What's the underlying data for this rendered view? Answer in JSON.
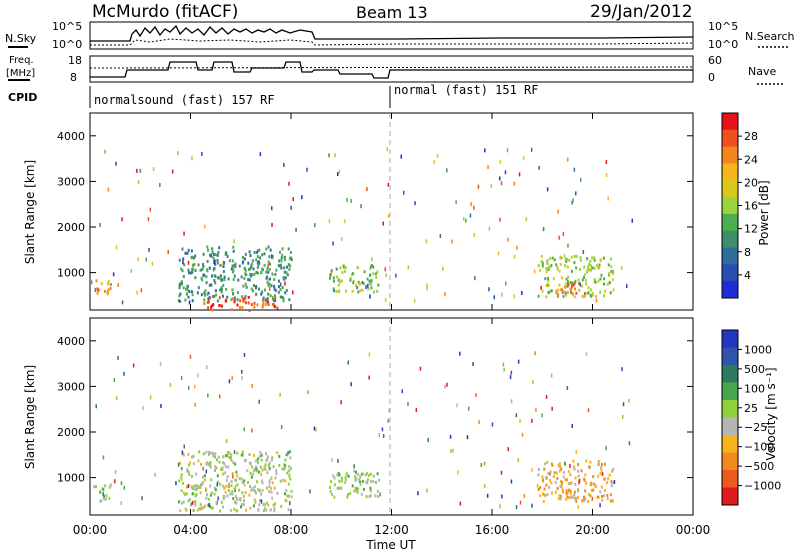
{
  "header": {
    "station": "McMurdo (fitACF)",
    "beam": "Beam 13",
    "date": "29/Jan/2012"
  },
  "top_panels": {
    "nsky_label": "N.Sky",
    "nsky_ticks": [
      "10^5",
      "10^0"
    ],
    "nsearch_label": "N.Search",
    "nsearch_ticks": [
      "10^5",
      "10^0"
    ],
    "freq_label_1": "Freq.",
    "freq_label_2": "[MHz]",
    "freq_ticks": [
      "18",
      "8"
    ],
    "nave_label": "Nave",
    "nave_ticks": [
      "60",
      "0"
    ],
    "cpid_label": "CPID",
    "modes": [
      "normalsound (fast) 157 RF",
      "normal (fast) 151 RF"
    ]
  },
  "colorbars": {
    "power": {
      "label": "Power [dB]",
      "ticks": [
        "28",
        "24",
        "20",
        "16",
        "12",
        "8",
        "4"
      ],
      "colors": [
        "#e8121b",
        "#f04f1f",
        "#f5861f",
        "#f6b51c",
        "#d8c81d",
        "#9bd33c",
        "#4cae4f",
        "#3f8e6a",
        "#2f6e9c",
        "#2a4cb5",
        "#1f2dd6"
      ]
    },
    "velocity": {
      "label": "Velocity [m s⁻¹]",
      "ticks": [
        "1000",
        "500",
        "100",
        "25",
        "−25",
        "−100",
        "−500",
        "−1000"
      ],
      "colors": [
        "#2137c4",
        "#2f53a8",
        "#2e7a5c",
        "#4aa64d",
        "#8fd13a",
        "#b5b5b5",
        "#f7b41a",
        "#f08a1c",
        "#ec5b1c",
        "#e01b1b"
      ]
    }
  },
  "axes": {
    "ylabel": "Slant Range [km]",
    "yticks": [
      "4000",
      "3000",
      "2000",
      "1000"
    ],
    "xlabel": "Time UT",
    "xticks": [
      "00:00",
      "04:00",
      "08:00",
      "12:00",
      "16:00",
      "20:00",
      "00:00"
    ]
  },
  "chart_data": [
    {
      "type": "heatmap",
      "title": "",
      "quantity": "Power [dB]",
      "xlabel": "",
      "ylabel": "Slant Range [km]",
      "xlim_hours": [
        0,
        24
      ],
      "ylim_km": [
        180,
        4500
      ],
      "clim": [
        0,
        30
      ],
      "regions": [
        {
          "t0": 0.1,
          "t1": 0.8,
          "r0": 500,
          "r1": 900,
          "value": 22
        },
        {
          "t0": 3.5,
          "t1": 8.0,
          "r0": 400,
          "r1": 1600,
          "value": 10
        },
        {
          "t0": 4.5,
          "t1": 7.5,
          "r0": 200,
          "r1": 500,
          "value": 26
        },
        {
          "t0": 9.5,
          "t1": 11.5,
          "r0": 600,
          "r1": 1200,
          "value": 14
        },
        {
          "t0": 17.8,
          "t1": 20.8,
          "r0": 500,
          "r1": 1400,
          "value": 15
        },
        {
          "t0": 18.5,
          "t1": 19.8,
          "r0": 500,
          "r1": 800,
          "value": 24
        }
      ]
    },
    {
      "type": "heatmap",
      "title": "",
      "quantity": "Velocity [m s^-1]",
      "xlabel": "Time UT",
      "ylabel": "Slant Range [km]",
      "xlim_hours": [
        0,
        24
      ],
      "ylim_km": [
        180,
        4500
      ],
      "clim": [
        -1000,
        1000
      ],
      "regions": [
        {
          "t0": 0.1,
          "t1": 0.8,
          "r0": 500,
          "r1": 900,
          "value": 80
        },
        {
          "t0": 3.5,
          "t1": 8.0,
          "r0": 300,
          "r1": 1600,
          "value": 0
        },
        {
          "t0": 9.5,
          "t1": 11.5,
          "r0": 600,
          "r1": 1200,
          "value": 60
        },
        {
          "t0": 17.8,
          "t1": 20.8,
          "r0": 500,
          "r1": 1400,
          "value": -300
        }
      ]
    }
  ]
}
